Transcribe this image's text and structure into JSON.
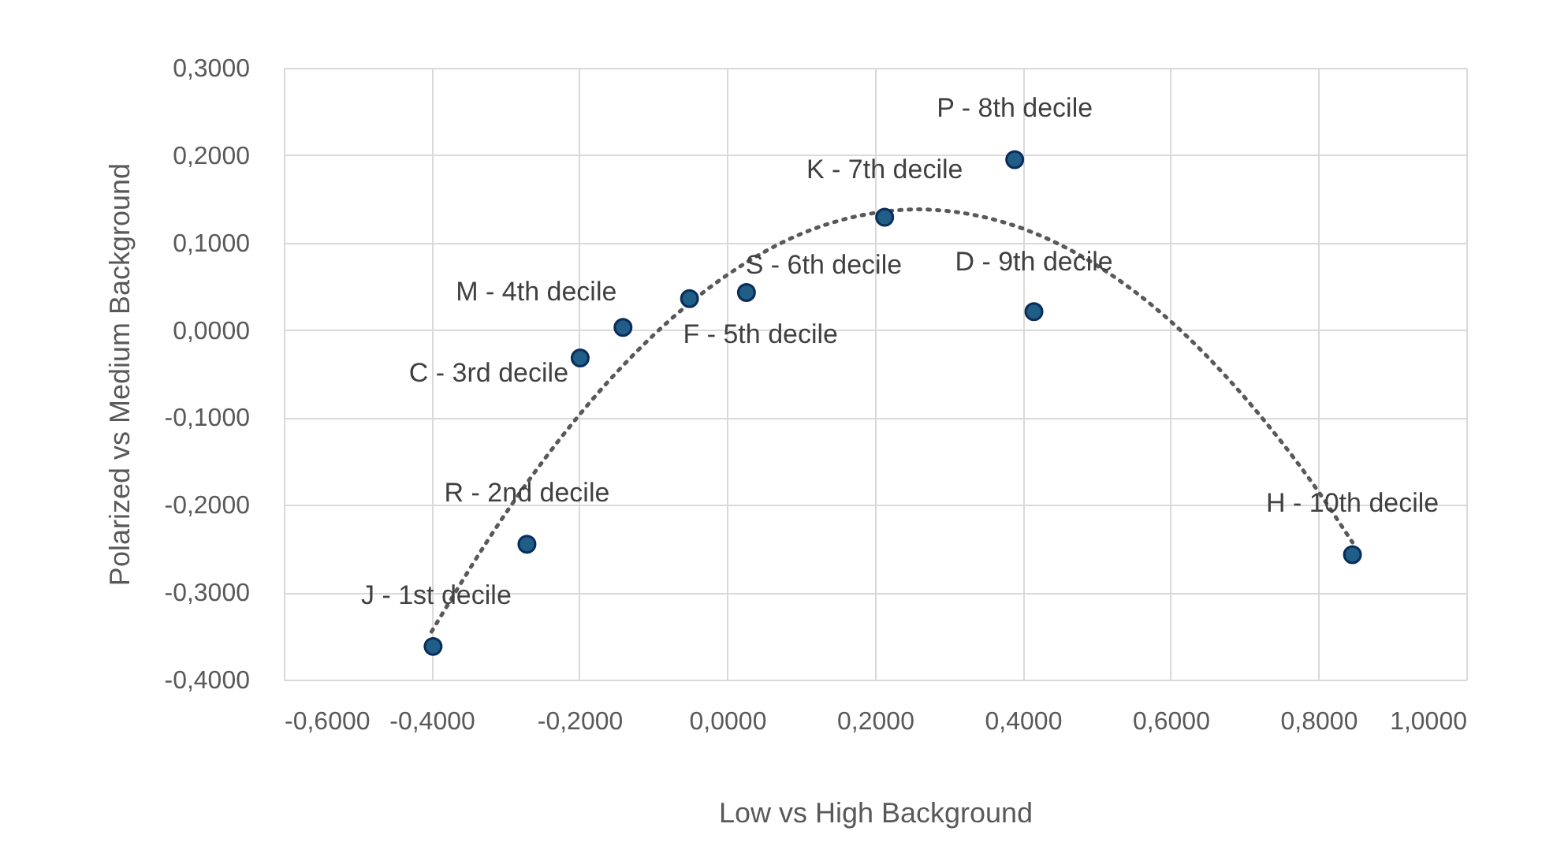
{
  "chart_data": {
    "type": "scatter",
    "xlabel": "Low vs High Background",
    "ylabel": "Polarized vs Medium Background",
    "xlim": [
      -0.6,
      1.0
    ],
    "xticks": [
      {
        "value": -0.6,
        "label": "-0,6000"
      },
      {
        "value": -0.4,
        "label": "-0,4000"
      },
      {
        "value": -0.2,
        "label": "-0,2000"
      },
      {
        "value": 0,
        "label": "0,0000"
      },
      {
        "value": 0.2,
        "label": "0,2000"
      },
      {
        "value": 0.4,
        "label": "0,4000"
      },
      {
        "value": 0.6,
        "label": "0,6000"
      },
      {
        "value": 0.8,
        "label": "0,8000"
      },
      {
        "value": 1.0,
        "label": "1,0000"
      }
    ],
    "ylim": [
      -0.4,
      0.3
    ],
    "yticks": [
      {
        "value": -0.4,
        "label": "-0,4000"
      },
      {
        "value": -0.3,
        "label": "-0,3000"
      },
      {
        "value": -0.2,
        "label": "-0,2000"
      },
      {
        "value": -0.1,
        "label": "-0,1000"
      },
      {
        "value": 0,
        "label": "0,0000"
      },
      {
        "value": 0.1,
        "label": "0,1000"
      },
      {
        "value": 0.2,
        "label": "0,2000"
      },
      {
        "value": 0.3,
        "label": "0,3000"
      }
    ],
    "grid": true,
    "marker": "circle",
    "series": [
      {
        "color": "#1f5e87",
        "x": [
          -0.398,
          -0.271,
          -0.199,
          -0.141,
          -0.051,
          0.026,
          0.213,
          0.389,
          0.415,
          0.846
        ],
        "values": [
          -0.362,
          -0.245,
          -0.032,
          0.003,
          0.036,
          0.043,
          0.129,
          0.195,
          0.021,
          -0.257
        ]
      },
      {
        "type": "line",
        "color": "#595959",
        "line_style": "dotted",
        "marker": "none",
        "x": [
          -0.4,
          -0.3,
          -0.2,
          -0.1,
          0,
          0.1,
          0.2,
          0.26,
          0.3,
          0.4,
          0.5,
          0.6,
          0.7,
          0.8,
          0.846
        ],
        "values": [
          -0.345,
          -0.21,
          -0.097,
          -0.006,
          0.063,
          0.11,
          0.134,
          0.138,
          0.136,
          0.116,
          0.074,
          0.01,
          -0.077,
          -0.185,
          -0.243
        ]
      }
    ],
    "annotations": [
      {
        "text": "J - 1st decile",
        "x": -0.398,
        "y": -0.362
      },
      {
        "text": "R - 2nd decile",
        "x": -0.271,
        "y": -0.245
      },
      {
        "text": "C - 3rd decile",
        "x": -0.199,
        "y": -0.032
      },
      {
        "text": "M - 4th decile",
        "x": -0.141,
        "y": 0.003
      },
      {
        "text": "F - 5th decile",
        "x": -0.051,
        "y": 0.036
      },
      {
        "text": "S - 6th decile",
        "x": 0.026,
        "y": 0.043
      },
      {
        "text": "K - 7th decile",
        "x": 0.213,
        "y": 0.129
      },
      {
        "text": "P - 8th decile",
        "x": 0.389,
        "y": 0.195
      },
      {
        "text": "D - 9th decile",
        "x": 0.415,
        "y": 0.021
      },
      {
        "text": "H - 10th decile",
        "x": 0.846,
        "y": -0.257
      }
    ]
  }
}
